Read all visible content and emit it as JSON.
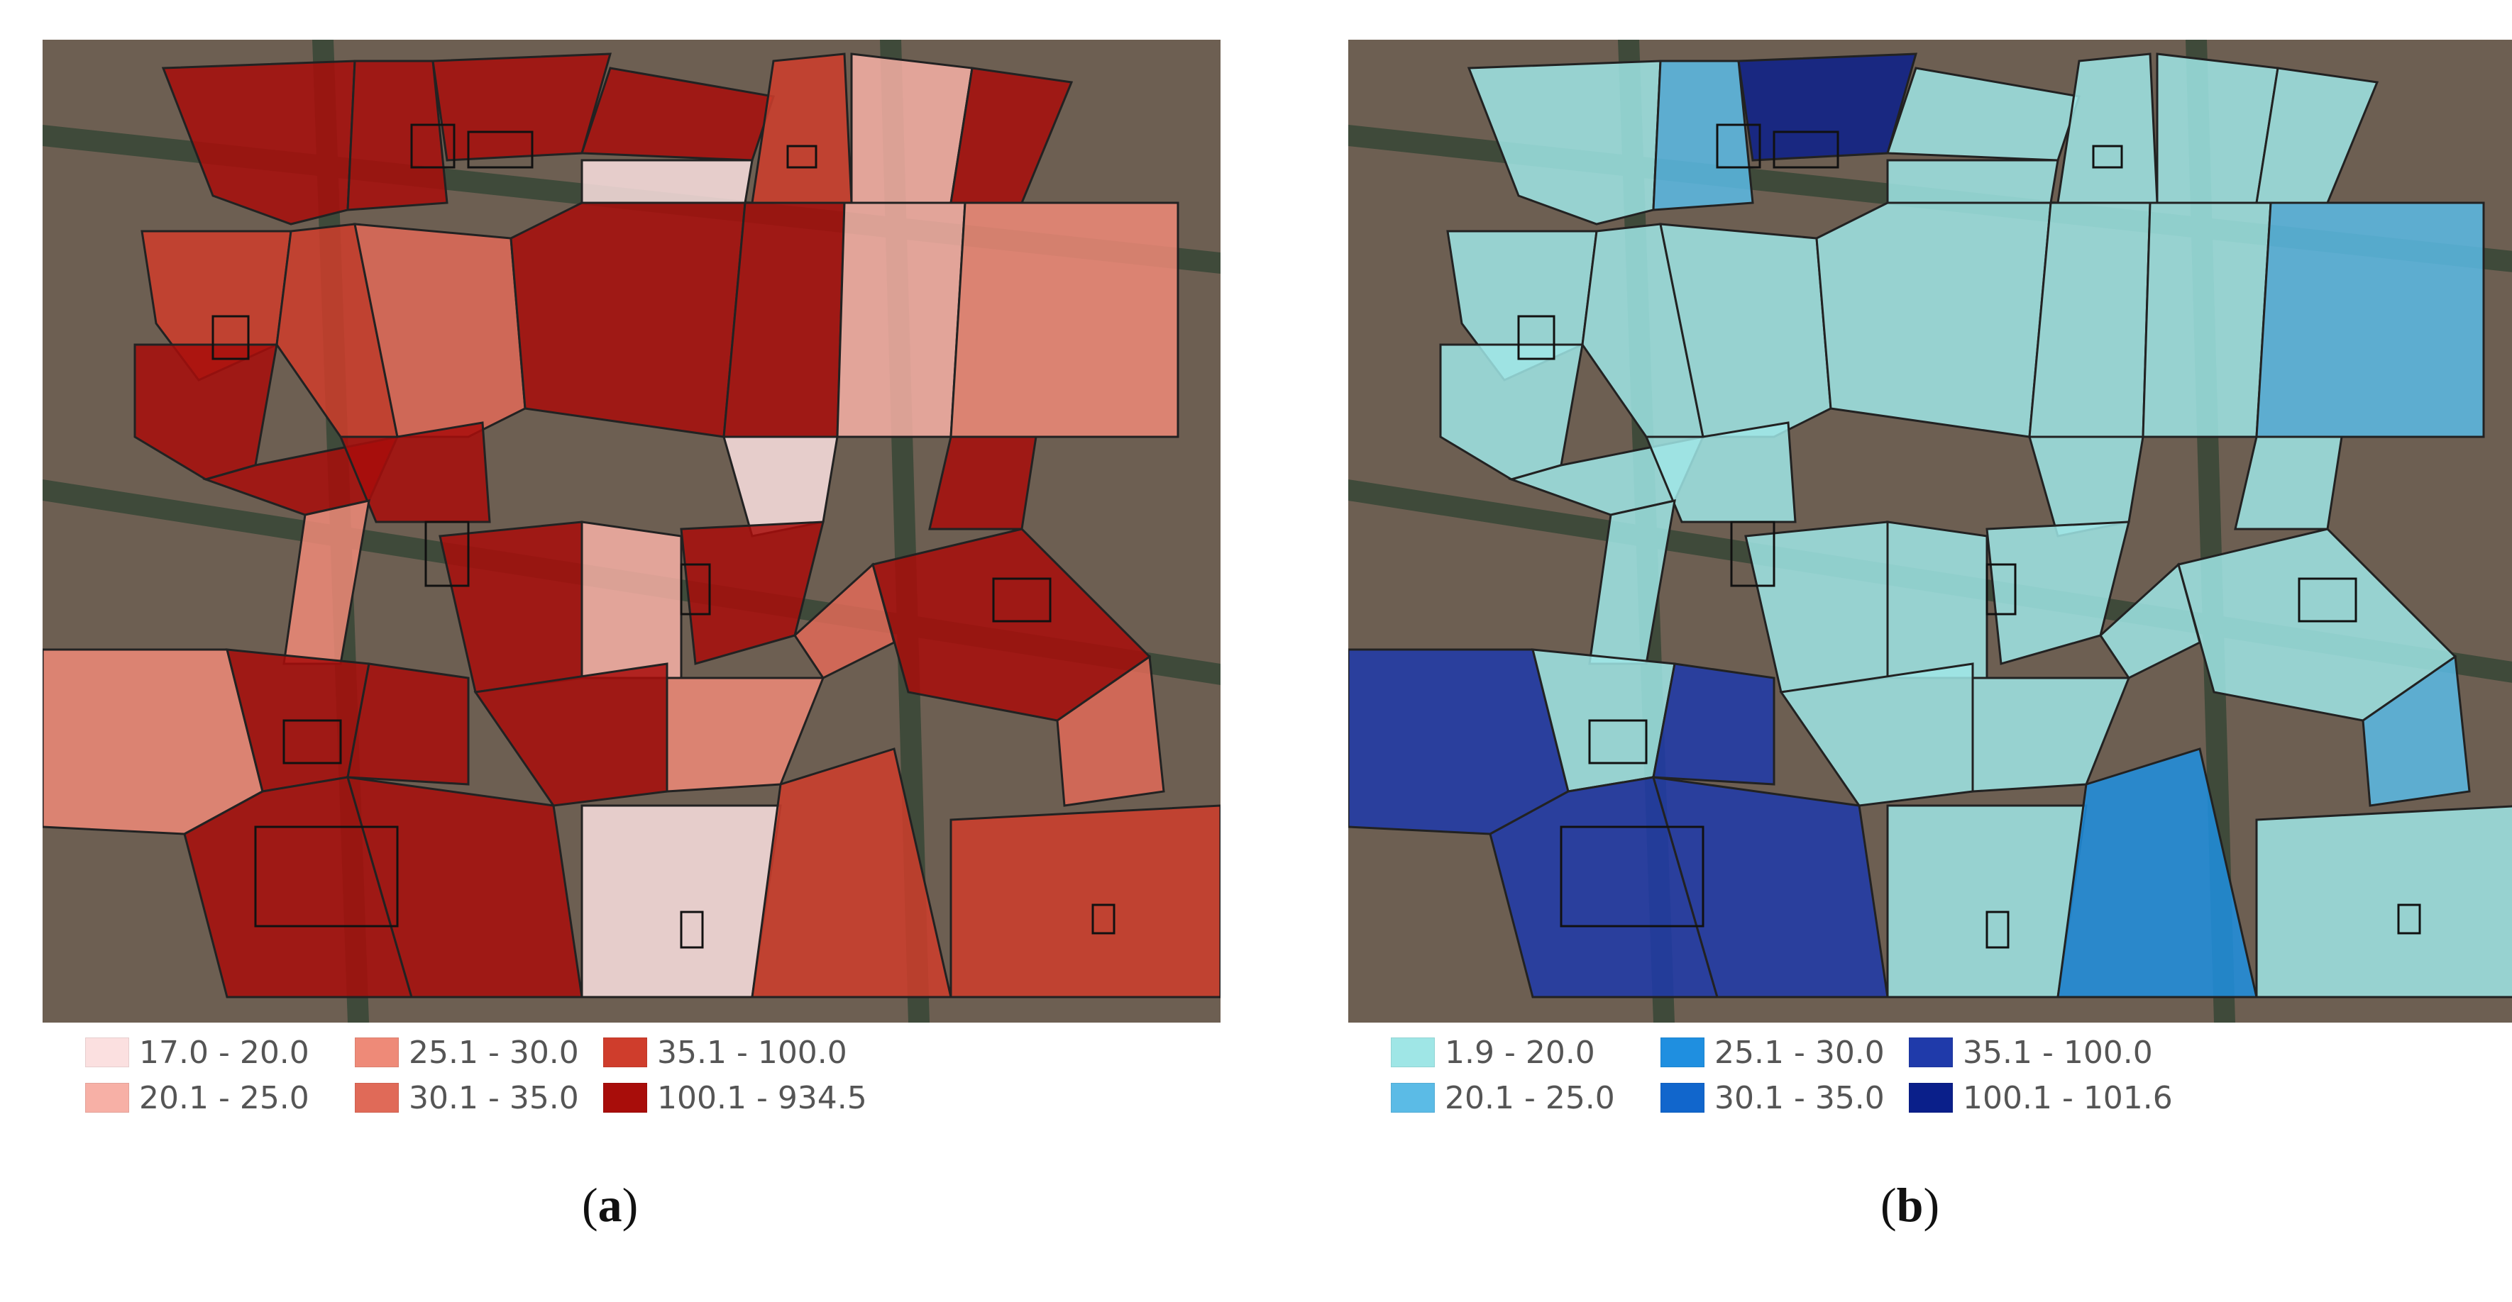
{
  "panels": [
    {
      "id": "a",
      "caption": "(a)",
      "caption_letter": "a",
      "palette": [
        "#fbe0e0",
        "#f7b0a6",
        "#ee8a78",
        "#e06a58",
        "#cf3d2c",
        "#a80d0a"
      ],
      "legend": [
        {
          "label": "17.0 - 20.0",
          "color": "#fbe0e0"
        },
        {
          "label": "20.1 - 25.0",
          "color": "#f7b0a6"
        },
        {
          "label": "25.1 - 30.0",
          "color": "#ee8a78"
        },
        {
          "label": "30.1 - 35.0",
          "color": "#e06a58"
        },
        {
          "label": "35.1 - 100.0",
          "color": "#cf3d2c"
        },
        {
          "label": "100.1 - 934.5",
          "color": "#a80d0a"
        }
      ],
      "block_classes": [
        5,
        5,
        5,
        5,
        0,
        4,
        1,
        5,
        4,
        4,
        3,
        5,
        5,
        1,
        2,
        5,
        5,
        5,
        0,
        5,
        2,
        5,
        1,
        5,
        3,
        5,
        2,
        5,
        5,
        5,
        2,
        3,
        5,
        5,
        0,
        4,
        4
      ]
    },
    {
      "id": "b",
      "caption": "(b)",
      "caption_letter": "b",
      "palette": [
        "#9fe6e6",
        "#5bbbe6",
        "#1f8fe0",
        "#1166cc",
        "#1f3aaa",
        "#0a1f8a"
      ],
      "legend": [
        {
          "label": "1.9 - 20.0",
          "color": "#9fe6e6"
        },
        {
          "label": "20.1 - 25.0",
          "color": "#5bbbe6"
        },
        {
          "label": "25.1 - 30.0",
          "color": "#1f8fe0"
        },
        {
          "label": "30.1 - 35.0",
          "color": "#1166cc"
        },
        {
          "label": "35.1 - 100.0",
          "color": "#1f3aaa"
        },
        {
          "label": "100.1 - 101.6",
          "color": "#0a1f8a"
        }
      ],
      "block_classes": [
        0,
        1,
        5,
        0,
        0,
        0,
        0,
        0,
        0,
        0,
        0,
        0,
        0,
        0,
        1,
        0,
        0,
        0,
        0,
        0,
        0,
        0,
        0,
        0,
        0,
        0,
        4,
        0,
        4,
        0,
        0,
        1,
        4,
        4,
        0,
        2,
        0
      ]
    }
  ]
}
